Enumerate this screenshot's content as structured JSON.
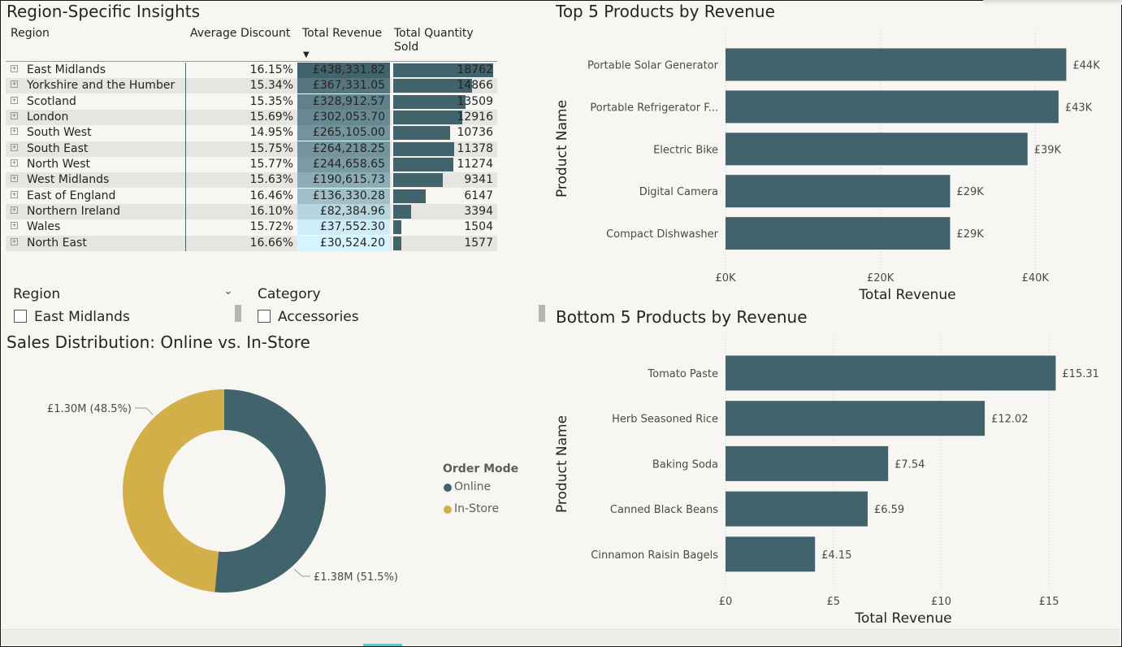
{
  "colors": {
    "bar": "#41636b",
    "in_store": "#d3af4a",
    "online": "#41636b"
  },
  "region_table": {
    "title": "Region-Specific Insights",
    "headers": [
      "Region",
      "Average Discount",
      "Total Revenue",
      "Total Quantity Sold"
    ],
    "sort_indicator": "▼",
    "rows": [
      {
        "region": "East Midlands",
        "discount": "16.15%",
        "revenue": "£438,331.82",
        "quantity": "18762"
      },
      {
        "region": "Yorkshire and the Humber",
        "discount": "15.34%",
        "revenue": "£367,331.05",
        "quantity": "14866"
      },
      {
        "region": "Scotland",
        "discount": "15.35%",
        "revenue": "£328,912.57",
        "quantity": "13509"
      },
      {
        "region": "London",
        "discount": "15.69%",
        "revenue": "£302,053.70",
        "quantity": "12916"
      },
      {
        "region": "South West",
        "discount": "14.95%",
        "revenue": "£265,105.00",
        "quantity": "10736"
      },
      {
        "region": "South East",
        "discount": "15.75%",
        "revenue": "£264,218.25",
        "quantity": "11378"
      },
      {
        "region": "North West",
        "discount": "15.77%",
        "revenue": "£244,658.65",
        "quantity": "11274"
      },
      {
        "region": "West Midlands",
        "discount": "15.63%",
        "revenue": "£190,615.73",
        "quantity": "9341"
      },
      {
        "region": "East of England",
        "discount": "16.46%",
        "revenue": "£136,330.28",
        "quantity": "6147"
      },
      {
        "region": "Northern Ireland",
        "discount": "16.10%",
        "revenue": "£82,384.96",
        "quantity": "3394"
      },
      {
        "region": "Wales",
        "discount": "15.72%",
        "revenue": "£37,552.30",
        "quantity": "1504"
      },
      {
        "region": "North East",
        "discount": "16.66%",
        "revenue": "£30,524.20",
        "quantity": "1577"
      }
    ]
  },
  "slicers": {
    "region": {
      "label": "Region",
      "option": "East Midlands"
    },
    "category": {
      "label": "Category",
      "option": "Accessories"
    }
  },
  "donut": {
    "title": "Sales Distribution: Online vs. In-Store",
    "legend_title": "Order Mode",
    "label_in_store": "£1.30M (48.5%)",
    "label_online": "£1.38M (51.5%)"
  },
  "chart_data": [
    {
      "type": "bar",
      "orientation": "horizontal",
      "title": "Top 5 Products by Revenue",
      "xlabel": "Total Revenue",
      "ylabel": "Product Name",
      "categories": [
        "Portable Solar Generator",
        "Portable Refrigerator F...",
        "Electric Bike",
        "Digital Camera",
        "Compact Dishwasher"
      ],
      "values": [
        44000,
        43000,
        39000,
        29000,
        29000
      ],
      "value_labels": [
        "£44K",
        "£43K",
        "£39K",
        "£29K",
        "£29K"
      ],
      "xticks": [
        0,
        20000,
        40000
      ],
      "xtick_labels": [
        "£0K",
        "£20K",
        "£40K"
      ],
      "xlim": [
        0,
        47000
      ]
    },
    {
      "type": "bar",
      "orientation": "horizontal",
      "title": "Bottom 5 Products by Revenue",
      "xlabel": "Total Revenue",
      "ylabel": "Product Name",
      "categories": [
        "Tomato Paste",
        "Herb Seasoned Rice",
        "Baking Soda",
        "Canned Black Beans",
        "Cinnamon Raisin Bagels"
      ],
      "values": [
        15.31,
        12.02,
        7.54,
        6.59,
        4.15
      ],
      "value_labels": [
        "£15.31",
        "£12.02",
        "£7.54",
        "£6.59",
        "£4.15"
      ],
      "xticks": [
        0,
        5,
        10,
        15
      ],
      "xtick_labels": [
        "£0",
        "£5",
        "£10",
        "£15"
      ],
      "xlim": [
        0,
        16.5
      ]
    },
    {
      "type": "pie",
      "style": "donut",
      "categories": [
        "Online",
        "In-Store"
      ],
      "values": [
        1.38,
        1.3
      ],
      "percentages": [
        51.5,
        48.5
      ],
      "unit": "£M"
    }
  ]
}
